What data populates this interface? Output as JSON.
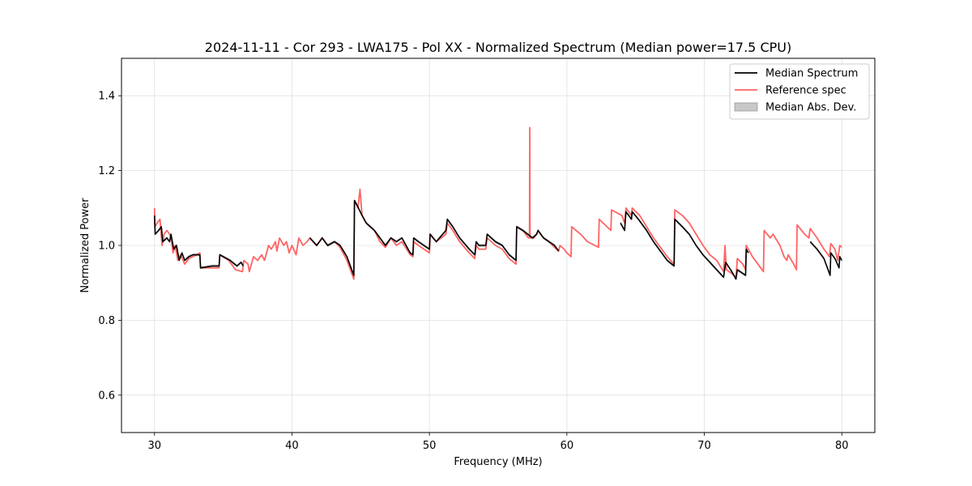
{
  "chart_data": {
    "type": "line",
    "title": "2024-11-11 - Cor 293 - LWA175 - Pol XX - Normalized Spectrum (Median power=17.5 CPU)",
    "xlabel": "Frequency (MHz)",
    "ylabel": "Normalized Power",
    "xlim": [
      27.6,
      82.4
    ],
    "ylim": [
      0.5,
      1.5
    ],
    "xticks": [
      30,
      40,
      50,
      60,
      70,
      80
    ],
    "yticks": [
      0.6,
      0.8,
      1.0,
      1.2,
      1.4
    ],
    "xtick_labels": [
      "30",
      "40",
      "50",
      "60",
      "70",
      "80"
    ],
    "ytick_labels": [
      "0.6",
      "0.8",
      "1.0",
      "1.2",
      "1.4"
    ],
    "grid": true,
    "legend_position": "top-right",
    "legend": [
      {
        "label": "Median Spectrum",
        "kind": "line",
        "color": "#000000"
      },
      {
        "label": "Reference spec",
        "kind": "line",
        "color": "#ff6464"
      },
      {
        "label": "Median Abs. Dev.",
        "kind": "patch",
        "color": "#c8c8c8"
      }
    ],
    "series": [
      {
        "name": "Median Spectrum",
        "color": "#000000",
        "mad": 0.004,
        "segments": [
          [
            [
              30.0,
              1.08
            ],
            [
              30.05,
              1.03
            ],
            [
              30.3,
              1.04
            ],
            [
              30.5,
              1.05
            ],
            [
              30.6,
              1.01
            ],
            [
              30.9,
              1.02
            ],
            [
              31.1,
              1.01
            ],
            [
              31.2,
              1.03
            ],
            [
              31.4,
              0.99
            ],
            [
              31.6,
              1.0
            ],
            [
              31.8,
              0.96
            ],
            [
              32.0,
              0.98
            ],
            [
              32.2,
              0.96
            ],
            [
              32.5,
              0.97
            ],
            [
              32.8,
              0.975
            ],
            [
              33.3,
              0.975
            ],
            [
              33.35,
              0.94
            ],
            [
              34.2,
              0.945
            ],
            [
              34.7,
              0.945
            ],
            [
              34.75,
              0.975
            ],
            [
              35.5,
              0.96
            ],
            [
              36.0,
              0.945
            ],
            [
              36.3,
              0.955
            ],
            [
              36.45,
              0.945
            ]
          ],
          [
            [
              41.3,
              1.02
            ],
            [
              41.8,
              1.0
            ],
            [
              42.2,
              1.02
            ],
            [
              42.6,
              1.0
            ],
            [
              43.1,
              1.01
            ],
            [
              43.5,
              1.0
            ],
            [
              44.0,
              0.97
            ],
            [
              44.5,
              0.92
            ],
            [
              44.55,
              1.12
            ],
            [
              44.7,
              1.11
            ],
            [
              45.1,
              1.08
            ],
            [
              45.4,
              1.06
            ],
            [
              46.0,
              1.04
            ],
            [
              46.4,
              1.02
            ],
            [
              46.8,
              1.0
            ],
            [
              47.2,
              1.02
            ],
            [
              47.6,
              1.01
            ],
            [
              48.0,
              1.02
            ],
            [
              48.6,
              0.98
            ],
            [
              48.8,
              0.975
            ],
            [
              48.85,
              1.02
            ],
            [
              49.2,
              1.01
            ],
            [
              49.6,
              1.0
            ],
            [
              50.0,
              0.99
            ],
            [
              50.05,
              1.03
            ],
            [
              50.5,
              1.01
            ],
            [
              51.2,
              1.04
            ],
            [
              51.3,
              1.07
            ],
            [
              51.7,
              1.05
            ],
            [
              52.2,
              1.02
            ],
            [
              52.9,
              0.99
            ],
            [
              53.3,
              0.975
            ],
            [
              53.4,
              1.01
            ],
            [
              53.6,
              1.0
            ],
            [
              54.1,
              1.0
            ],
            [
              54.2,
              1.03
            ],
            [
              54.8,
              1.01
            ],
            [
              55.3,
              1.0
            ],
            [
              55.8,
              0.975
            ],
            [
              56.3,
              0.96
            ],
            [
              56.35,
              1.05
            ],
            [
              56.8,
              1.04
            ],
            [
              57.5,
              1.02
            ],
            [
              57.8,
              1.03
            ],
            [
              57.9,
              1.04
            ],
            [
              58.3,
              1.02
            ],
            [
              58.7,
              1.01
            ],
            [
              59.1,
              1.0
            ],
            [
              59.4,
              0.985
            ]
          ],
          [
            [
              63.9,
              1.06
            ],
            [
              64.2,
              1.04
            ],
            [
              64.3,
              1.09
            ],
            [
              64.5,
              1.08
            ],
            [
              64.7,
              1.07
            ],
            [
              64.75,
              1.09
            ],
            [
              65.2,
              1.07
            ],
            [
              65.8,
              1.04
            ],
            [
              66.3,
              1.01
            ],
            [
              66.8,
              0.985
            ],
            [
              67.3,
              0.96
            ],
            [
              67.8,
              0.945
            ],
            [
              67.85,
              1.07
            ],
            [
              68.4,
              1.05
            ],
            [
              68.9,
              1.03
            ],
            [
              69.4,
              1.0
            ],
            [
              69.9,
              0.975
            ],
            [
              70.4,
              0.955
            ],
            [
              70.9,
              0.935
            ],
            [
              71.4,
              0.915
            ],
            [
              71.55,
              0.955
            ],
            [
              72.0,
              0.93
            ],
            [
              72.3,
              0.91
            ],
            [
              72.4,
              0.935
            ],
            [
              72.8,
              0.925
            ],
            [
              73.0,
              0.92
            ],
            [
              73.05,
              0.99
            ],
            [
              73.2,
              0.98
            ]
          ],
          [
            [
              77.7,
              1.01
            ],
            [
              78.2,
              0.99
            ],
            [
              78.7,
              0.965
            ],
            [
              79.15,
              0.92
            ],
            [
              79.2,
              0.98
            ],
            [
              79.5,
              0.965
            ],
            [
              79.8,
              0.94
            ],
            [
              79.85,
              0.97
            ],
            [
              80.0,
              0.96
            ]
          ]
        ]
      },
      {
        "name": "Reference spec",
        "color": "#ff6464",
        "segments": [
          [
            [
              30.0,
              1.1
            ],
            [
              30.03,
              1.05
            ],
            [
              30.2,
              1.06
            ],
            [
              30.4,
              1.07
            ],
            [
              30.55,
              1.0
            ],
            [
              30.7,
              1.03
            ],
            [
              30.9,
              1.04
            ],
            [
              31.1,
              1.03
            ],
            [
              31.2,
              1.02
            ],
            [
              31.35,
              0.98
            ],
            [
              31.5,
              1.0
            ],
            [
              31.7,
              0.96
            ],
            [
              31.9,
              0.975
            ],
            [
              32.2,
              0.95
            ],
            [
              32.5,
              0.965
            ],
            [
              32.8,
              0.97
            ],
            [
              33.3,
              0.98
            ],
            [
              33.35,
              0.94
            ],
            [
              34.2,
              0.94
            ],
            [
              34.7,
              0.94
            ],
            [
              34.75,
              0.975
            ],
            [
              35.4,
              0.96
            ],
            [
              35.9,
              0.935
            ],
            [
              36.4,
              0.93
            ],
            [
              36.5,
              0.96
            ],
            [
              36.8,
              0.95
            ],
            [
              36.9,
              0.93
            ],
            [
              37.2,
              0.97
            ],
            [
              37.5,
              0.96
            ],
            [
              37.8,
              0.975
            ],
            [
              38.0,
              0.96
            ],
            [
              38.3,
              1.0
            ],
            [
              38.5,
              0.99
            ],
            [
              38.8,
              1.01
            ],
            [
              38.9,
              0.985
            ],
            [
              39.1,
              1.02
            ],
            [
              39.4,
              1.0
            ],
            [
              39.6,
              1.01
            ],
            [
              39.8,
              0.98
            ],
            [
              40.0,
              1.0
            ],
            [
              40.3,
              0.975
            ],
            [
              40.5,
              1.02
            ],
            [
              40.8,
              1.0
            ],
            [
              41.1,
              1.01
            ],
            [
              41.3,
              1.02
            ],
            [
              41.8,
              1.0
            ],
            [
              42.2,
              1.02
            ],
            [
              42.6,
              1.0
            ],
            [
              43.1,
              1.01
            ],
            [
              43.5,
              0.995
            ],
            [
              44.0,
              0.96
            ],
            [
              44.5,
              0.91
            ],
            [
              44.55,
              1.12
            ],
            [
              44.8,
              1.1
            ],
            [
              44.95,
              1.15
            ],
            [
              45.1,
              1.08
            ],
            [
              45.4,
              1.06
            ],
            [
              46.0,
              1.04
            ],
            [
              46.4,
              1.01
            ],
            [
              46.8,
              0.995
            ],
            [
              47.2,
              1.02
            ],
            [
              47.6,
              1.0
            ],
            [
              48.0,
              1.01
            ],
            [
              48.6,
              0.975
            ],
            [
              48.8,
              0.97
            ],
            [
              48.85,
              1.01
            ],
            [
              49.2,
              1.0
            ],
            [
              49.6,
              0.99
            ],
            [
              50.0,
              0.98
            ],
            [
              50.05,
              1.03
            ],
            [
              50.5,
              1.01
            ],
            [
              51.2,
              1.03
            ],
            [
              51.3,
              1.06
            ],
            [
              51.7,
              1.04
            ],
            [
              52.2,
              1.01
            ],
            [
              52.9,
              0.98
            ],
            [
              53.3,
              0.965
            ],
            [
              53.4,
              1.0
            ],
            [
              53.6,
              0.99
            ],
            [
              54.1,
              0.99
            ],
            [
              54.2,
              1.02
            ],
            [
              54.8,
              1.0
            ],
            [
              55.3,
              0.99
            ],
            [
              55.8,
              0.965
            ],
            [
              56.3,
              0.95
            ],
            [
              56.35,
              1.05
            ],
            [
              56.8,
              1.04
            ],
            [
              57.2,
              1.02
            ],
            [
              57.28,
              1.02
            ],
            [
              57.3,
              1.315
            ],
            [
              57.32,
              1.02
            ],
            [
              57.6,
              1.02
            ],
            [
              57.8,
              1.03
            ],
            [
              57.9,
              1.04
            ],
            [
              58.3,
              1.02
            ],
            [
              58.7,
              1.01
            ],
            [
              59.1,
              0.995
            ],
            [
              59.4,
              0.985
            ],
            [
              59.5,
              1.0
            ],
            [
              59.8,
              0.99
            ],
            [
              60.0,
              0.98
            ],
            [
              60.3,
              0.97
            ],
            [
              60.35,
              1.05
            ],
            [
              61.0,
              1.03
            ],
            [
              61.5,
              1.01
            ],
            [
              62.3,
              0.995
            ],
            [
              62.35,
              1.07
            ],
            [
              63.2,
              1.04
            ],
            [
              63.25,
              1.095
            ],
            [
              64.0,
              1.08
            ],
            [
              64.2,
              1.06
            ],
            [
              64.3,
              1.1
            ],
            [
              64.7,
              1.08
            ],
            [
              64.75,
              1.1
            ],
            [
              65.3,
              1.08
            ],
            [
              65.8,
              1.05
            ],
            [
              66.3,
              1.02
            ],
            [
              66.8,
              0.995
            ],
            [
              67.3,
              0.97
            ],
            [
              67.8,
              0.95
            ],
            [
              67.85,
              1.095
            ],
            [
              68.4,
              1.08
            ],
            [
              68.9,
              1.06
            ],
            [
              69.4,
              1.03
            ],
            [
              69.9,
              1.0
            ],
            [
              70.4,
              0.975
            ],
            [
              70.9,
              0.96
            ],
            [
              71.4,
              0.93
            ],
            [
              71.5,
              1.0
            ],
            [
              71.6,
              0.935
            ],
            [
              72.0,
              0.925
            ],
            [
              72.3,
              0.915
            ],
            [
              72.4,
              0.965
            ],
            [
              72.8,
              0.95
            ],
            [
              73.0,
              0.935
            ],
            [
              73.05,
              1.0
            ],
            [
              73.5,
              0.97
            ],
            [
              74.0,
              0.945
            ],
            [
              74.3,
              0.93
            ],
            [
              74.35,
              1.04
            ],
            [
              74.8,
              1.02
            ],
            [
              75.0,
              1.03
            ],
            [
              75.5,
              1.0
            ],
            [
              75.8,
              0.97
            ],
            [
              76.0,
              0.96
            ],
            [
              76.1,
              0.975
            ],
            [
              76.5,
              0.95
            ],
            [
              76.7,
              0.935
            ],
            [
              76.75,
              1.055
            ],
            [
              77.3,
              1.03
            ],
            [
              77.6,
              1.02
            ],
            [
              77.7,
              1.045
            ],
            [
              78.2,
              1.02
            ],
            [
              78.7,
              0.99
            ],
            [
              79.1,
              0.97
            ],
            [
              79.2,
              1.005
            ],
            [
              79.5,
              0.99
            ],
            [
              79.7,
              0.96
            ],
            [
              79.85,
              1.0
            ],
            [
              80.0,
              0.995
            ]
          ]
        ]
      }
    ]
  }
}
